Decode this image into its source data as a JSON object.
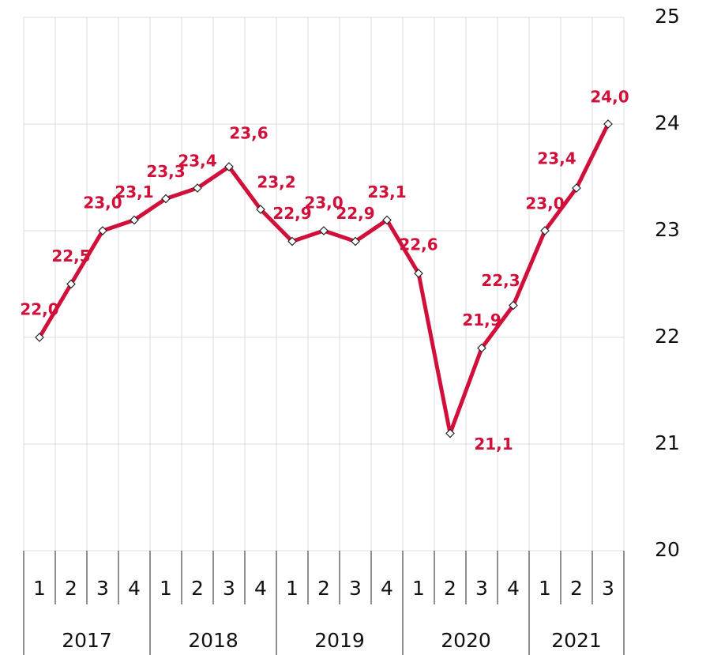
{
  "chart_data": {
    "type": "line",
    "groups": [
      {
        "label": "2017",
        "categories": [
          "1",
          "2",
          "3",
          "4"
        ]
      },
      {
        "label": "2018",
        "categories": [
          "1",
          "2",
          "3",
          "4"
        ]
      },
      {
        "label": "2019",
        "categories": [
          "1",
          "2",
          "3",
          "4"
        ]
      },
      {
        "label": "2020",
        "categories": [
          "1",
          "2",
          "3",
          "4"
        ]
      },
      {
        "label": "2021",
        "categories": [
          "1",
          "2",
          "3"
        ]
      }
    ],
    "values": [
      22.0,
      22.5,
      23.0,
      23.1,
      23.3,
      23.4,
      23.6,
      23.2,
      22.9,
      23.0,
      22.9,
      23.1,
      22.6,
      21.1,
      21.9,
      22.3,
      23.0,
      23.4,
      24.0
    ],
    "value_labels": [
      "22,0",
      "22,5",
      "23,0",
      "23,1",
      "23,3",
      "23,4",
      "23,6",
      "23,2",
      "22,9",
      "23,0",
      "22,9",
      "23,1",
      "22,6",
      "21,1",
      "21,9",
      "22,3",
      "23,0",
      "23,4",
      "24,0"
    ],
    "color": "#d0103a",
    "ylim": [
      20,
      25
    ],
    "yticks": [
      20,
      21,
      22,
      23,
      24,
      25
    ],
    "grid": true
  }
}
